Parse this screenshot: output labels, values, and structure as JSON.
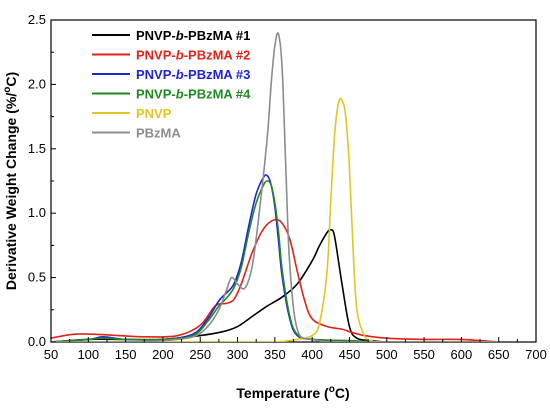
{
  "chart_data": {
    "type": "line",
    "xlabel_main": "Temperature (",
    "xlabel_sup": "o",
    "xlabel_end": "C)",
    "ylabel_main": "Derivative Weight Change (%/",
    "ylabel_sup": "o",
    "ylabel_end": "C)",
    "xlim": [
      50,
      700
    ],
    "ylim": [
      0,
      2.5
    ],
    "xticks": [
      50,
      100,
      150,
      200,
      250,
      300,
      350,
      400,
      450,
      500,
      550,
      600,
      650,
      700
    ],
    "yticks": [
      0.0,
      0.5,
      1.0,
      1.5,
      2.0,
      2.5
    ],
    "ytick_labels": [
      "0.0",
      "0.5",
      "1.0",
      "1.5",
      "2.0",
      "2.5"
    ],
    "grid": false,
    "legend_position": "top-left",
    "series": [
      {
        "name_pre": "PNVP-",
        "name_ital": "b",
        "name_post": "-PBzMA #1",
        "color": "#000000",
        "x": [
          50,
          100,
          150,
          200,
          250,
          280,
          300,
          320,
          340,
          360,
          380,
          400,
          410,
          420,
          425,
          430,
          440,
          450,
          460,
          480,
          500,
          550,
          600,
          650
        ],
        "y": [
          0.0,
          0.02,
          0.02,
          0.02,
          0.05,
          0.08,
          0.12,
          0.2,
          0.28,
          0.35,
          0.45,
          0.63,
          0.75,
          0.85,
          0.87,
          0.82,
          0.45,
          0.12,
          0.03,
          0.01,
          0.0,
          0.0,
          0.0,
          0.0
        ]
      },
      {
        "name_pre": "PNVP-",
        "name_ital": "b",
        "name_post": "-PBzMA #2",
        "color": "#e32119",
        "x": [
          50,
          80,
          110,
          140,
          180,
          220,
          250,
          270,
          285,
          295,
          305,
          320,
          335,
          350,
          360,
          370,
          380,
          390,
          400,
          420,
          440,
          450,
          470,
          500,
          550,
          600,
          650
        ],
        "y": [
          0.03,
          0.06,
          0.06,
          0.05,
          0.04,
          0.05,
          0.13,
          0.28,
          0.3,
          0.33,
          0.45,
          0.7,
          0.88,
          0.95,
          0.92,
          0.8,
          0.55,
          0.32,
          0.18,
          0.12,
          0.1,
          0.08,
          0.05,
          0.03,
          0.02,
          0.02,
          0.0
        ]
      },
      {
        "name_pre": "PNVP-",
        "name_ital": "b",
        "name_post": "-PBzMA #3",
        "color": "#1f22d6",
        "x": [
          50,
          100,
          120,
          150,
          200,
          240,
          260,
          275,
          285,
          295,
          305,
          315,
          325,
          335,
          340,
          345,
          350,
          355,
          360,
          370,
          380,
          400,
          450,
          500,
          650
        ],
        "y": [
          0.0,
          0.02,
          0.04,
          0.02,
          0.02,
          0.06,
          0.18,
          0.32,
          0.38,
          0.45,
          0.62,
          0.9,
          1.15,
          1.28,
          1.29,
          1.22,
          1.05,
          0.78,
          0.5,
          0.18,
          0.05,
          0.02,
          0.01,
          0.0,
          0.0
        ]
      },
      {
        "name_pre": "PNVP-",
        "name_ital": "b",
        "name_post": "-PBzMA #4",
        "color": "#1f8a1f",
        "x": [
          50,
          100,
          120,
          150,
          200,
          240,
          260,
          275,
          285,
          295,
          305,
          315,
          325,
          335,
          340,
          345,
          350,
          355,
          360,
          370,
          380,
          400,
          450,
          500,
          650
        ],
        "y": [
          0.0,
          0.02,
          0.03,
          0.02,
          0.02,
          0.05,
          0.16,
          0.28,
          0.34,
          0.42,
          0.58,
          0.85,
          1.08,
          1.22,
          1.25,
          1.22,
          1.08,
          0.85,
          0.55,
          0.2,
          0.06,
          0.02,
          0.01,
          0.0,
          0.0
        ]
      },
      {
        "name_pre": "PNVP",
        "name_ital": "",
        "name_post": "",
        "color": "#e1c623",
        "x": [
          50,
          100,
          200,
          300,
          350,
          380,
          400,
          410,
          420,
          425,
          430,
          435,
          440,
          445,
          450,
          455,
          460,
          470,
          480,
          500,
          650
        ],
        "y": [
          0.0,
          0.0,
          0.0,
          0.0,
          0.0,
          0.02,
          0.05,
          0.15,
          0.55,
          1.1,
          1.6,
          1.85,
          1.88,
          1.75,
          1.35,
          0.7,
          0.25,
          0.05,
          0.01,
          0.0,
          0.0
        ]
      },
      {
        "name_pre": "PBzMA",
        "name_ital": "",
        "name_post": "",
        "color": "#8c8c8c",
        "x": [
          50,
          100,
          150,
          200,
          240,
          260,
          275,
          285,
          292,
          300,
          310,
          320,
          330,
          340,
          345,
          350,
          355,
          360,
          365,
          370,
          380,
          400,
          450,
          650
        ],
        "y": [
          0.0,
          0.0,
          0.0,
          0.01,
          0.04,
          0.12,
          0.25,
          0.4,
          0.5,
          0.45,
          0.42,
          0.6,
          1.05,
          1.6,
          2.0,
          2.3,
          2.39,
          2.1,
          1.3,
          0.6,
          0.1,
          0.02,
          0.0,
          0.0
        ]
      }
    ]
  }
}
